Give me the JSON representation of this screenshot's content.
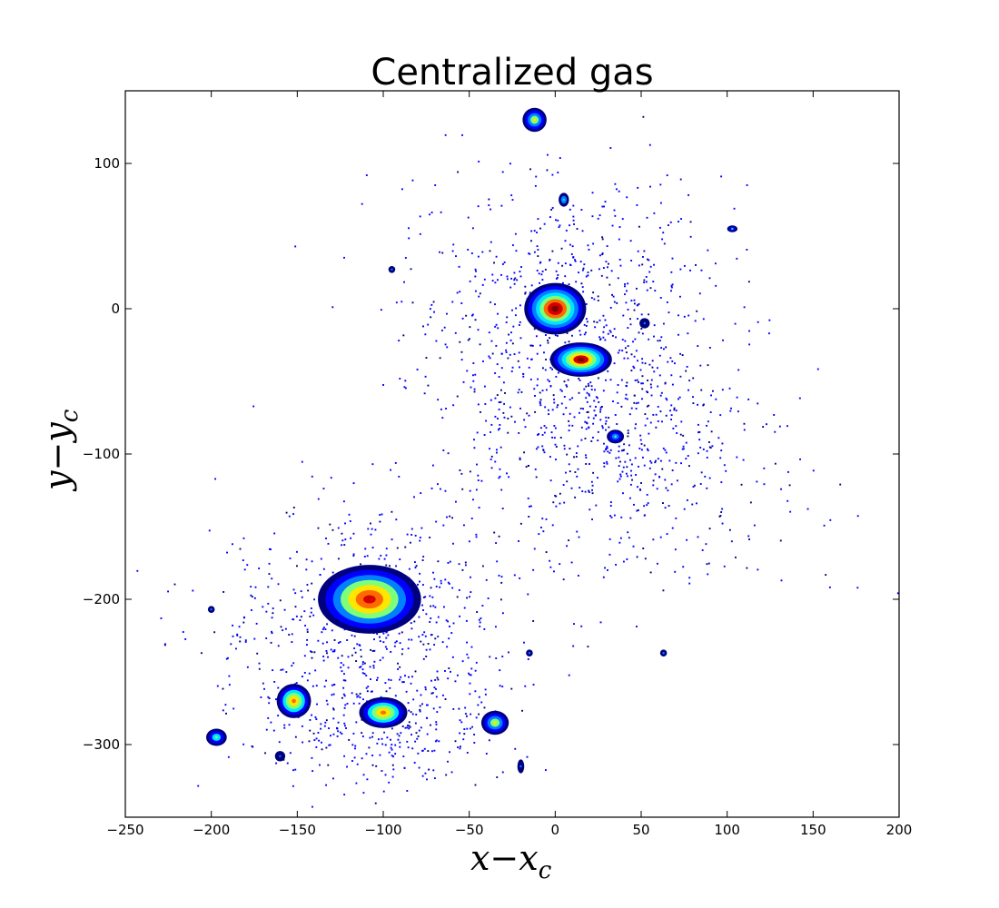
{
  "chart_data": {
    "type": "heatmap",
    "title": "Centralized gas",
    "xlabel": "x−x",
    "xlabel_sub": "c",
    "ylabel": "y−y",
    "ylabel_sub": "c",
    "xlim": [
      -250,
      200
    ],
    "ylim": [
      -350,
      150
    ],
    "xticks": [
      -250,
      -200,
      -150,
      -100,
      -50,
      0,
      50,
      100,
      150,
      200
    ],
    "yticks": [
      -300,
      -200,
      -100,
      0,
      100
    ],
    "grid": false,
    "legend": "none",
    "colormap": [
      "#00007f",
      "#0000ff",
      "#0080ff",
      "#00e5ff",
      "#7dff7a",
      "#ffe600",
      "#ff6a00",
      "#d40000",
      "#7f0000"
    ],
    "clumps": [
      {
        "name": "main-core",
        "x": 0,
        "y": 0,
        "sx": 18,
        "sy": 15,
        "peak": 0.98
      },
      {
        "name": "main-secondary",
        "x": 15,
        "y": -35,
        "sx": 18,
        "sy": 10,
        "peak": 0.95
      },
      {
        "name": "lower-left-core",
        "x": -108,
        "y": -200,
        "sx": 30,
        "sy": 20,
        "peak": 0.92
      },
      {
        "name": "clump-1",
        "x": -100,
        "y": -278,
        "sx": 14,
        "sy": 9,
        "peak": 0.8
      },
      {
        "name": "clump-2",
        "x": -152,
        "y": -270,
        "sx": 10,
        "sy": 10,
        "peak": 0.8
      },
      {
        "name": "clump-3",
        "x": -35,
        "y": -285,
        "sx": 8,
        "sy": 7,
        "peak": 0.6
      },
      {
        "name": "clump-4",
        "x": -197,
        "y": -295,
        "sx": 6,
        "sy": 5,
        "peak": 0.55
      },
      {
        "name": "clump-5",
        "x": -12,
        "y": 130,
        "sx": 7,
        "sy": 7,
        "peak": 0.6
      },
      {
        "name": "clump-6",
        "x": 5,
        "y": 75,
        "sx": 3,
        "sy": 4,
        "peak": 0.4
      },
      {
        "name": "clump-7",
        "x": 35,
        "y": -88,
        "sx": 5,
        "sy": 4,
        "peak": 0.45
      },
      {
        "name": "clump-8",
        "x": 103,
        "y": 55,
        "sx": 3,
        "sy": 2,
        "peak": 0.35
      },
      {
        "name": "clump-9",
        "x": 52,
        "y": -10,
        "sx": 3,
        "sy": 3,
        "peak": 0.3
      },
      {
        "name": "clump-10",
        "x": -160,
        "y": -308,
        "sx": 3,
        "sy": 3,
        "peak": 0.3
      },
      {
        "name": "clump-11",
        "x": -20,
        "y": -315,
        "sx": 2,
        "sy": 4,
        "peak": 0.25
      },
      {
        "name": "clump-12",
        "x": -15,
        "y": -237,
        "sx": 2,
        "sy": 2,
        "peak": 0.2
      },
      {
        "name": "clump-13",
        "x": 63,
        "y": -237,
        "sx": 2,
        "sy": 2,
        "peak": 0.2
      },
      {
        "name": "clump-14",
        "x": -200,
        "y": -207,
        "sx": 2,
        "sy": 2,
        "peak": 0.2
      },
      {
        "name": "clump-15",
        "x": -95,
        "y": 27,
        "sx": 2,
        "sy": 2,
        "peak": 0.2
      }
    ]
  }
}
